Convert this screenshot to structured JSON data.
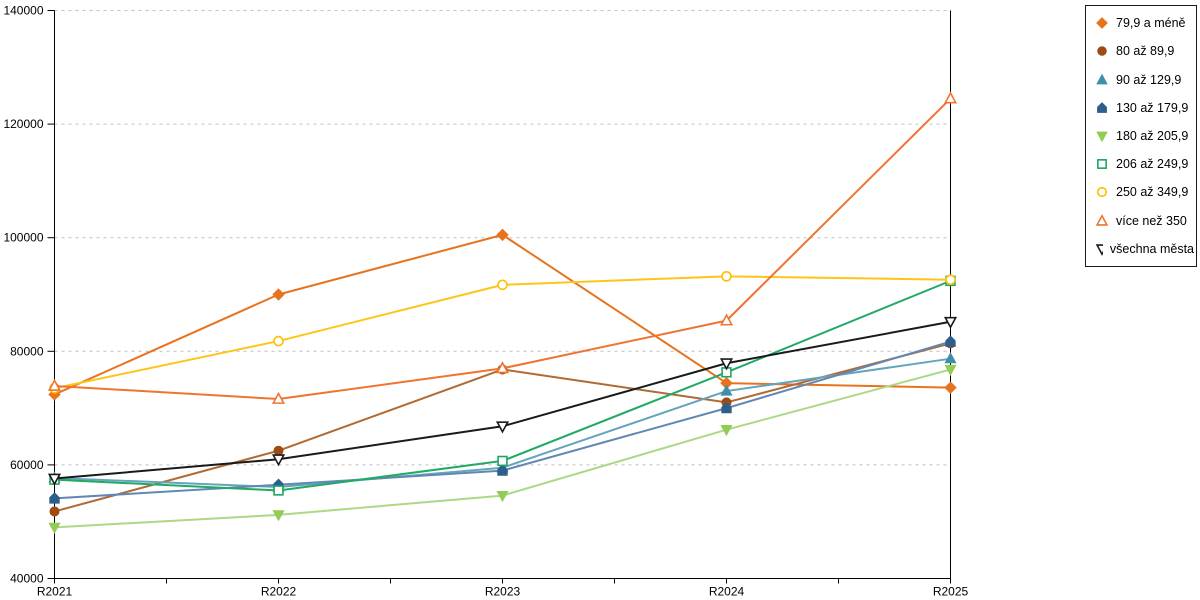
{
  "chart_data": {
    "type": "line",
    "title": "",
    "categories": [
      "R2021",
      "R2022",
      "R2023",
      "R2024",
      "R2025"
    ],
    "ylim": [
      40000,
      140000
    ],
    "ytick_step": 20000,
    "ytick_labels": [
      "40000",
      "60000",
      "80000",
      "100000",
      "120000",
      "140000"
    ],
    "grid": "horizontal-dashed",
    "gridline_color": "#c0c0c0",
    "axis_color": "#000000",
    "legend_position": "right",
    "series": [
      {
        "name": "79,9 a méně",
        "marker": "diamond",
        "fill": "filled",
        "color": "#e8731e",
        "line_color": "#e8731e",
        "values": [
          72400,
          90000,
          100500,
          74400,
          73600
        ]
      },
      {
        "name": "80 až 89,9",
        "marker": "circle",
        "fill": "filled",
        "color": "#9e4b15",
        "line_color": "#b06a33",
        "values": [
          51800,
          62500,
          76800,
          71000,
          81400
        ]
      },
      {
        "name": "90 až 129,9",
        "marker": "triangle-up",
        "fill": "filled",
        "color": "#3e8faa",
        "line_color": "#64a5bc",
        "values": [
          57700,
          56100,
          59500,
          73000,
          78700
        ]
      },
      {
        "name": "130 až 179,9",
        "marker": "pentagon",
        "fill": "filled",
        "color": "#2e5f8c",
        "line_color": "#6288b2",
        "values": [
          54100,
          56500,
          59000,
          70000,
          81700
        ]
      },
      {
        "name": "180 až 205,9",
        "marker": "triangle-down",
        "fill": "filled",
        "color": "#92cc56",
        "line_color": "#acd985",
        "values": [
          49000,
          51200,
          54600,
          66200,
          76800
        ]
      },
      {
        "name": "206 až 249,9",
        "marker": "square",
        "fill": "open",
        "color": "#1fa463",
        "line_color": "#21a966",
        "values": [
          57400,
          55500,
          60700,
          76300,
          92400
        ]
      },
      {
        "name": "250 až 349,9",
        "marker": "circle",
        "fill": "open",
        "color": "#fdc000",
        "line_color": "#fdc51b",
        "values": [
          73500,
          81800,
          91700,
          93200,
          92600
        ]
      },
      {
        "name": "více než 350",
        "marker": "triangle-up",
        "fill": "open",
        "color": "#f0742f",
        "line_color": "#f0742f",
        "values": [
          73900,
          71600,
          77000,
          85400,
          124500
        ]
      },
      {
        "name": "všechna města",
        "marker": "triangle-down",
        "fill": "open",
        "color": "#1a1a1a",
        "line_color": "#1a1a1a",
        "values": [
          57600,
          61000,
          66800,
          77900,
          85200
        ]
      }
    ]
  }
}
